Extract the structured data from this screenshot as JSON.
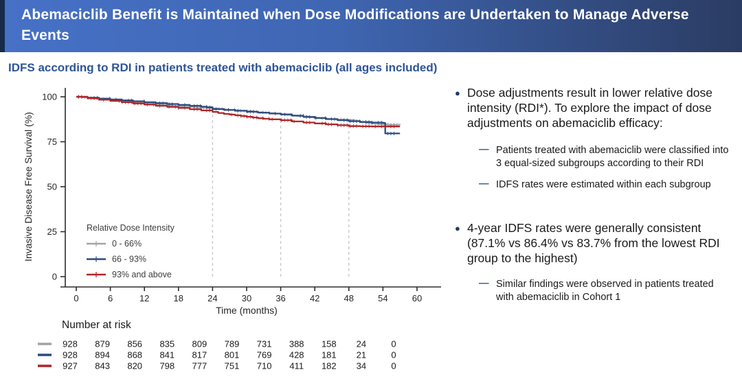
{
  "banner": {
    "title": "Abemaciclib Benefit is Maintained when Dose Modifications are Undertaken to Manage Adverse Events"
  },
  "subtitle": "IDFS according to RDI in patients treated with abemaciclib (all ages included)",
  "colors": {
    "banner_left": "#4671c6",
    "banner_right": "#2b3c63",
    "subtitle_blue": "#2e5596",
    "bullet_dot": "#1f3864",
    "sub_dash": "#41618e",
    "axis": "#2b2b2b",
    "guide": "#c9c9c9"
  },
  "chart_data": {
    "type": "line",
    "subtype": "kaplan-meier-step",
    "title": "",
    "xlabel": "Time (months)",
    "ylabel": "Invasive Disease Free Survival (%)",
    "xlim": [
      0,
      60
    ],
    "ylim": [
      0,
      100
    ],
    "xticks": [
      0,
      6,
      12,
      18,
      24,
      30,
      36,
      42,
      48,
      54,
      60
    ],
    "yticks": [
      0,
      25,
      50,
      75,
      100
    ],
    "grid": false,
    "dashed_guides": [
      {
        "x": 24,
        "top": 91.6
      },
      {
        "x": 36,
        "top": 87.0
      },
      {
        "x": 48,
        "top": 83.7
      }
    ],
    "legend": {
      "title": "Relative Dose Intensity",
      "position": "inside-lower-left"
    },
    "series": [
      {
        "name": "0 - 66%",
        "color": "#a3a3a3",
        "points": [
          [
            0,
            100
          ],
          [
            1,
            99.7
          ],
          [
            2,
            99.4
          ],
          [
            3,
            99.0
          ],
          [
            4,
            98.7
          ],
          [
            5,
            98.5
          ],
          [
            6,
            98.2
          ],
          [
            7,
            97.9
          ],
          [
            8,
            97.6
          ],
          [
            9,
            97.3
          ],
          [
            10,
            97.0
          ],
          [
            11,
            96.7
          ],
          [
            12,
            96.4
          ],
          [
            13,
            96.1
          ],
          [
            14,
            95.8
          ],
          [
            15,
            95.5
          ],
          [
            16,
            95.2
          ],
          [
            17,
            94.9
          ],
          [
            18,
            94.7
          ],
          [
            19,
            94.5
          ],
          [
            20,
            94.3
          ],
          [
            21,
            94.1
          ],
          [
            22,
            93.9
          ],
          [
            23,
            93.7
          ],
          [
            24,
            93.5
          ],
          [
            25,
            93.2
          ],
          [
            26,
            92.9
          ],
          [
            27,
            92.7
          ],
          [
            28,
            92.5
          ],
          [
            29,
            92.2
          ],
          [
            30,
            92.0
          ],
          [
            31,
            91.7
          ],
          [
            32,
            91.4
          ],
          [
            33,
            91.2
          ],
          [
            34,
            90.9
          ],
          [
            35,
            90.6
          ],
          [
            36,
            90.3
          ],
          [
            37,
            90.0
          ],
          [
            38,
            89.6
          ],
          [
            39,
            89.3
          ],
          [
            40,
            89.0
          ],
          [
            41,
            88.6
          ],
          [
            42,
            88.3
          ],
          [
            43,
            88.0
          ],
          [
            44,
            87.8
          ],
          [
            45,
            87.6
          ],
          [
            46,
            87.4
          ],
          [
            47,
            87.2
          ],
          [
            48,
            87.1
          ],
          [
            49,
            86.6
          ],
          [
            50,
            86.0
          ],
          [
            51,
            85.5
          ],
          [
            52,
            85.1
          ],
          [
            53,
            84.8
          ],
          [
            54,
            84.6
          ],
          [
            55,
            84.5
          ],
          [
            57,
            84.4
          ]
        ]
      },
      {
        "name": "66 - 93%",
        "color": "#2b4b7e",
        "points": [
          [
            0,
            100
          ],
          [
            2,
            99.5
          ],
          [
            4,
            99.0
          ],
          [
            6,
            98.5
          ],
          [
            8,
            98.0
          ],
          [
            10,
            97.5
          ],
          [
            12,
            97.0
          ],
          [
            14,
            96.5
          ],
          [
            16,
            96.0
          ],
          [
            18,
            95.5
          ],
          [
            20,
            95.0
          ],
          [
            22,
            94.5
          ],
          [
            23,
            94.2
          ],
          [
            24,
            93.2
          ],
          [
            26,
            92.7
          ],
          [
            28,
            92.2
          ],
          [
            30,
            91.7
          ],
          [
            32,
            91.2
          ],
          [
            34,
            90.7
          ],
          [
            36,
            90.2
          ],
          [
            38,
            89.5
          ],
          [
            40,
            88.8
          ],
          [
            42,
            88.2
          ],
          [
            44,
            87.6
          ],
          [
            46,
            87.0
          ],
          [
            48,
            86.4
          ],
          [
            50,
            86.0
          ],
          [
            52,
            85.7
          ],
          [
            54,
            85.5
          ],
          [
            54.4,
            79.6
          ],
          [
            57,
            79.6
          ]
        ]
      },
      {
        "name": "93% and above",
        "color": "#b02428",
        "points": [
          [
            0,
            100
          ],
          [
            2,
            99.2
          ],
          [
            4,
            98.4
          ],
          [
            6,
            97.7
          ],
          [
            8,
            97.0
          ],
          [
            10,
            96.3
          ],
          [
            12,
            95.7
          ],
          [
            14,
            95.0
          ],
          [
            16,
            94.4
          ],
          [
            18,
            93.8
          ],
          [
            20,
            93.1
          ],
          [
            22,
            92.4
          ],
          [
            24,
            91.6
          ],
          [
            25,
            91.0
          ],
          [
            26,
            90.5
          ],
          [
            27,
            90.1
          ],
          [
            28,
            89.7
          ],
          [
            29,
            89.3
          ],
          [
            30,
            88.9
          ],
          [
            31,
            88.5
          ],
          [
            32,
            88.1
          ],
          [
            33,
            87.8
          ],
          [
            34,
            87.5
          ],
          [
            36,
            87.0
          ],
          [
            38,
            86.3
          ],
          [
            40,
            85.7
          ],
          [
            42,
            85.2
          ],
          [
            44,
            84.7
          ],
          [
            46,
            84.2
          ],
          [
            48,
            83.7
          ],
          [
            50,
            83.6
          ],
          [
            52,
            83.5
          ],
          [
            54,
            83.5
          ],
          [
            57,
            83.5
          ]
        ]
      }
    ],
    "number_at_risk": {
      "label": "Number at risk",
      "times": [
        0,
        6,
        12,
        18,
        24,
        30,
        36,
        42,
        48,
        54,
        60
      ],
      "rows": [
        {
          "name": "0 - 66%",
          "color": "#a3a3a3",
          "values": [
            928,
            879,
            856,
            835,
            809,
            789,
            731,
            388,
            158,
            24,
            0
          ]
        },
        {
          "name": "66 - 93%",
          "color": "#2b4b7e",
          "values": [
            928,
            894,
            868,
            841,
            817,
            801,
            769,
            428,
            181,
            21,
            0
          ]
        },
        {
          "name": "93% and above",
          "color": "#b02428",
          "values": [
            927,
            843,
            820,
            798,
            777,
            751,
            710,
            411,
            182,
            34,
            0
          ]
        }
      ]
    }
  },
  "bullets": [
    {
      "text": "Dose adjustments result in lower relative dose intensity (RDI*). To explore the impact of dose adjustments on abemaciclib efficacy:",
      "subs": [
        "Patients treated with abemaciclib were classified into 3 equal-sized subgroups according to their RDI",
        "IDFS rates were estimated within each subgroup"
      ]
    },
    {
      "text": "4-year IDFS rates were generally consistent (87.1% vs 86.4% vs 83.7% from the lowest RDI group to the highest)",
      "subs": [
        "Similar findings were observed in patients treated with abemaciclib in Cohort 1"
      ]
    }
  ]
}
